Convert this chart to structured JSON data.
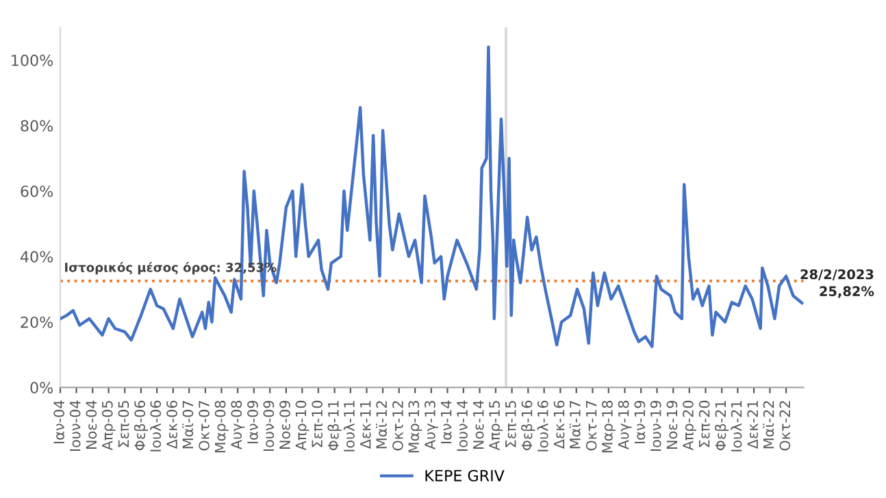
{
  "chart_data": {
    "type": "line",
    "x": [
      "2004-01",
      "2004-03",
      "2004-05",
      "2004-07",
      "2004-10",
      "2005-02",
      "2005-04",
      "2005-06",
      "2005-09",
      "2005-11",
      "2006-02",
      "2006-05",
      "2006-07",
      "2006-09",
      "2006-12",
      "2007-02",
      "2007-06",
      "2007-09",
      "2007-10",
      "2007-11",
      "2007-12",
      "2008-01",
      "2008-04",
      "2008-06",
      "2008-07",
      "2008-09",
      "2008-10",
      "2008-11",
      "2008-12",
      "2009-01",
      "2009-02",
      "2009-04",
      "2009-05",
      "2009-06",
      "2009-08",
      "2009-09",
      "2009-11",
      "2010-01",
      "2010-02",
      "2010-04",
      "2010-05",
      "2010-06",
      "2010-09",
      "2010-10",
      "2010-12",
      "2011-01",
      "2011-04",
      "2011-05",
      "2011-06",
      "2011-09",
      "2011-10",
      "2011-11",
      "2012-01",
      "2012-02",
      "2012-03",
      "2012-04",
      "2012-05",
      "2012-07",
      "2012-08",
      "2012-10",
      "2013-01",
      "2013-03",
      "2013-05",
      "2013-06",
      "2013-08",
      "2013-09",
      "2013-11",
      "2013-12",
      "2014-01",
      "2014-04",
      "2014-07",
      "2014-10",
      "2014-11-01",
      "2014-11-21",
      "2015-01-04",
      "2015-01-23",
      "2015-02-15",
      "2015-03-06",
      "2015-03-18",
      "2015-04-18",
      "2015-05-23",
      "2015-06-20",
      "2015-07-15",
      "2015-08-06",
      "2015-08-26",
      "2015-09-18",
      "2015-10-09",
      "2015-11-21",
      "2016-01-24",
      "2016-03-06",
      "2016-04-18",
      "2016-06-01",
      "2016-07-12",
      "2016-09-15",
      "2016-10-28",
      "2016-12-12",
      "2017-03-06",
      "2017-05-09",
      "2017-07-12",
      "2017-08-25",
      "2017-10-06",
      "2017-11-18",
      "2018-01-21",
      "2018-03-25",
      "2018-06-01",
      "2018-08-04",
      "2018-10-28",
      "2018-12-10",
      "2019-02-12",
      "2019-04-15",
      "2019-05-28",
      "2019-07-10",
      "2019-10-06",
      "2019-11-18",
      "2020-01-21",
      "2020-02-12",
      "2020-03-25",
      "2020-05-06",
      "2020-06-18",
      "2020-08-01",
      "2020-10-04",
      "2020-11-04",
      "2020-12-07",
      "2021-03-04",
      "2021-05-07",
      "2021-07-10",
      "2021-09-12",
      "2021-11-15",
      "2022-02-01",
      "2022-02-18",
      "2022-04-12",
      "2022-06-15",
      "2022-07-28",
      "2022-10-01",
      "2022-12-07",
      "2023-02-28"
    ],
    "series": [
      {
        "name": "KEPE GRIV",
        "color": "#4472c4",
        "values": [
          21,
          22,
          23.5,
          19,
          21,
          16,
          21,
          18,
          17,
          14.5,
          22,
          30,
          25,
          24,
          18,
          27,
          15.5,
          23,
          18,
          26,
          20,
          33.5,
          28,
          23,
          33,
          27,
          66,
          55,
          37,
          60,
          50,
          28,
          48,
          38,
          32,
          38,
          55,
          60,
          40,
          62,
          50,
          40,
          45,
          36,
          30,
          38,
          40,
          60,
          48,
          76,
          85.5,
          65,
          45,
          77,
          50,
          34,
          78.5,
          50,
          42,
          53,
          40,
          45,
          32,
          58.5,
          46,
          38,
          40,
          27,
          34,
          45,
          38,
          30,
          42,
          67,
          70,
          104,
          60,
          45,
          21,
          50,
          82,
          60,
          37,
          70,
          22,
          45,
          40,
          32,
          52,
          42,
          46,
          37,
          30,
          20,
          13,
          20,
          22,
          30,
          24,
          13.5,
          35,
          25,
          35,
          27,
          31,
          25,
          17,
          14,
          15.5,
          12.5,
          34,
          30,
          28,
          23,
          21,
          62,
          40,
          27,
          30,
          25,
          31,
          16,
          23,
          20,
          26,
          25,
          31,
          27,
          18,
          36.5,
          31,
          21,
          31,
          34,
          28,
          25.82
        ]
      }
    ],
    "ylim": [
      0,
      110
    ],
    "yticks": [
      {
        "value": 0,
        "label": "0%"
      },
      {
        "value": 20,
        "label": "20%"
      },
      {
        "value": 40,
        "label": "40%"
      },
      {
        "value": 60,
        "label": "60%"
      },
      {
        "value": 80,
        "label": "80%"
      },
      {
        "value": 100,
        "label": "100%"
      }
    ],
    "xlim": [
      "2004-01-01",
      "2023-03-15"
    ],
    "xticks": [
      {
        "value": "2004-01",
        "label": "Ιαν-04"
      },
      {
        "value": "2004-06",
        "label": "Ιουν-04"
      },
      {
        "value": "2004-11",
        "label": "Νοε-04"
      },
      {
        "value": "2005-04",
        "label": "Απρ-05"
      },
      {
        "value": "2005-09",
        "label": "Σεπ-05"
      },
      {
        "value": "2006-02",
        "label": "Φεβ-06"
      },
      {
        "value": "2006-07",
        "label": "Ιουλ-06"
      },
      {
        "value": "2006-12",
        "label": "Δεκ-06"
      },
      {
        "value": "2007-05",
        "label": "Μαϊ-07"
      },
      {
        "value": "2007-10",
        "label": "Οκτ-07"
      },
      {
        "value": "2008-03",
        "label": "Μαρ-08"
      },
      {
        "value": "2008-08",
        "label": "Αυγ-08"
      },
      {
        "value": "2009-01",
        "label": "Ιαν-09"
      },
      {
        "value": "2009-06",
        "label": "Ιουν-09"
      },
      {
        "value": "2009-11",
        "label": "Νοε-09"
      },
      {
        "value": "2010-04",
        "label": "Απρ-10"
      },
      {
        "value": "2010-09",
        "label": "Σεπ-10"
      },
      {
        "value": "2011-02",
        "label": "Φεβ-11"
      },
      {
        "value": "2011-07",
        "label": "Ιουλ-11"
      },
      {
        "value": "2011-12",
        "label": "Δεκ-11"
      },
      {
        "value": "2012-05",
        "label": "Μαϊ-12"
      },
      {
        "value": "2012-10",
        "label": "Οκτ-12"
      },
      {
        "value": "2013-03",
        "label": "Μαρ-13"
      },
      {
        "value": "2013-08",
        "label": "Αυγ-13"
      },
      {
        "value": "2014-01",
        "label": "Ιαν-14"
      },
      {
        "value": "2014-06",
        "label": "Ιουν-14"
      },
      {
        "value": "2014-11",
        "label": "Νοε-14"
      },
      {
        "value": "2015-04",
        "label": "Απρ-15"
      },
      {
        "value": "2015-09",
        "label": "Σεπ-15"
      },
      {
        "value": "2016-02",
        "label": "Φεβ-16"
      },
      {
        "value": "2016-07",
        "label": "Ιουλ-16"
      },
      {
        "value": "2016-12",
        "label": "Δεκ-16"
      },
      {
        "value": "2017-05",
        "label": "Μαϊ-17"
      },
      {
        "value": "2017-10",
        "label": "Οκτ-17"
      },
      {
        "value": "2018-03",
        "label": "Μαρ-18"
      },
      {
        "value": "2018-08",
        "label": "Αυγ-18"
      },
      {
        "value": "2019-01",
        "label": "Ιαν-19"
      },
      {
        "value": "2019-06",
        "label": "Ιουν-19"
      },
      {
        "value": "2019-11",
        "label": "Νοε-19"
      },
      {
        "value": "2020-04",
        "label": "Απρ-20"
      },
      {
        "value": "2020-09",
        "label": "Σεπ-20"
      },
      {
        "value": "2021-02",
        "label": "Φεβ-21"
      },
      {
        "value": "2021-07",
        "label": "Ιουλ-21"
      },
      {
        "value": "2021-12",
        "label": "Δεκ-21"
      },
      {
        "value": "2022-05",
        "label": "Μαϊ-22"
      },
      {
        "value": "2022-10",
        "label": "Οκτ-22"
      }
    ],
    "ref_lines": [
      {
        "axis": "y",
        "value": 32.53,
        "label": "Ιστορικός μέσος όρος: 32,53%",
        "color": "#ed7d31",
        "line_style": "dotted"
      }
    ],
    "bands": [
      {
        "axis": "x",
        "from": "2015-06-25",
        "to": "2015-07-20",
        "color": "#d9d9d9"
      }
    ],
    "annotations": [
      {
        "text": "28/2/2023\n25,82%",
        "x": "2023-02-28",
        "y": 25.82
      }
    ],
    "grid": false,
    "legend": "bottom",
    "marker": "none",
    "line_style": "solid"
  }
}
